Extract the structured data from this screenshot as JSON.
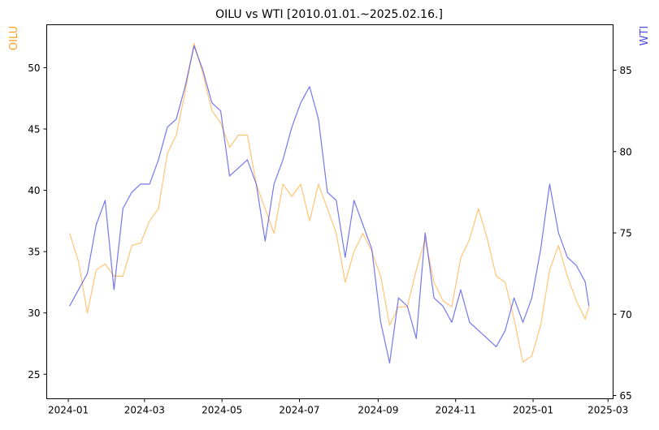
{
  "chart_data": {
    "type": "line",
    "title": "OILU vs WTI [2010.01.01.~2025.02.16.]",
    "x_dates": [
      "2024-01-02",
      "2024-01-09",
      "2024-01-16",
      "2024-01-23",
      "2024-01-30",
      "2024-02-06",
      "2024-02-13",
      "2024-02-20",
      "2024-02-27",
      "2024-03-05",
      "2024-03-12",
      "2024-03-19",
      "2024-03-26",
      "2024-04-02",
      "2024-04-09",
      "2024-04-16",
      "2024-04-23",
      "2024-04-30",
      "2024-05-07",
      "2024-05-14",
      "2024-05-21",
      "2024-05-28",
      "2024-06-04",
      "2024-06-11",
      "2024-06-18",
      "2024-06-25",
      "2024-07-02",
      "2024-07-09",
      "2024-07-16",
      "2024-07-23",
      "2024-07-30",
      "2024-08-06",
      "2024-08-13",
      "2024-08-20",
      "2024-08-27",
      "2024-09-03",
      "2024-09-10",
      "2024-09-17",
      "2024-09-24",
      "2024-10-01",
      "2024-10-08",
      "2024-10-15",
      "2024-10-22",
      "2024-10-29",
      "2024-11-05",
      "2024-11-12",
      "2024-11-19",
      "2024-11-26",
      "2024-12-03",
      "2024-12-10",
      "2024-12-17",
      "2024-12-24",
      "2024-12-31",
      "2025-01-07",
      "2025-01-14",
      "2025-01-21",
      "2025-01-28",
      "2025-02-04",
      "2025-02-11",
      "2025-02-14"
    ],
    "x_tick_labels": [
      "2024-01",
      "2024-03",
      "2024-05",
      "2024-07",
      "2024-09",
      "2024-11",
      "2025-01",
      "2025-03"
    ],
    "series": [
      {
        "name": "OILU",
        "axis": "left",
        "color": "#ff9f1c",
        "values": [
          36.5,
          34.2,
          30.0,
          33.5,
          34.0,
          33.0,
          33.0,
          35.5,
          35.7,
          37.5,
          38.5,
          43.0,
          44.5,
          48.0,
          52.0,
          49.5,
          46.5,
          45.5,
          43.5,
          44.5,
          44.5,
          40.5,
          38.5,
          36.5,
          40.5,
          39.5,
          40.5,
          37.5,
          40.5,
          38.5,
          36.5,
          32.5,
          35.0,
          36.5,
          35.0,
          33.0,
          29.0,
          30.5,
          30.5,
          33.5,
          36.0,
          32.5,
          31.0,
          30.5,
          34.5,
          36.0,
          38.5,
          36.0,
          33.0,
          32.5,
          29.5,
          26.0,
          26.5,
          29.0,
          33.5,
          35.5,
          33.0,
          31.0,
          29.5,
          30.5
        ]
      },
      {
        "name": "WTI",
        "axis": "right",
        "color": "#4a4ae8",
        "values": [
          70.5,
          71.5,
          72.5,
          75.5,
          77.0,
          71.5,
          76.5,
          77.5,
          78.0,
          78.0,
          79.5,
          81.5,
          82.0,
          84.0,
          86.5,
          85.0,
          83.0,
          82.5,
          78.5,
          79.0,
          79.5,
          78.0,
          74.5,
          78.0,
          79.5,
          81.5,
          83.0,
          84.0,
          82.0,
          77.5,
          77.0,
          73.5,
          77.0,
          75.5,
          74.0,
          69.5,
          67.0,
          71.0,
          70.5,
          68.5,
          75.0,
          71.0,
          70.5,
          69.5,
          71.5,
          69.5,
          69.0,
          68.5,
          68.0,
          69.0,
          71.0,
          69.5,
          71.0,
          74.0,
          78.0,
          75.0,
          73.5,
          73.0,
          72.0,
          70.5
        ]
      }
    ],
    "y_left": {
      "label": "OILU",
      "ylim": [
        23,
        53.5
      ],
      "ticks": [
        25,
        30,
        35,
        40,
        45,
        50
      ]
    },
    "y_right": {
      "label": "WTI",
      "ylim": [
        64.8,
        87.8
      ],
      "ticks": [
        65,
        70,
        75,
        80,
        85
      ]
    },
    "xlim": [
      "2023-12-15",
      "2025-03-05"
    ],
    "grid": false
  }
}
